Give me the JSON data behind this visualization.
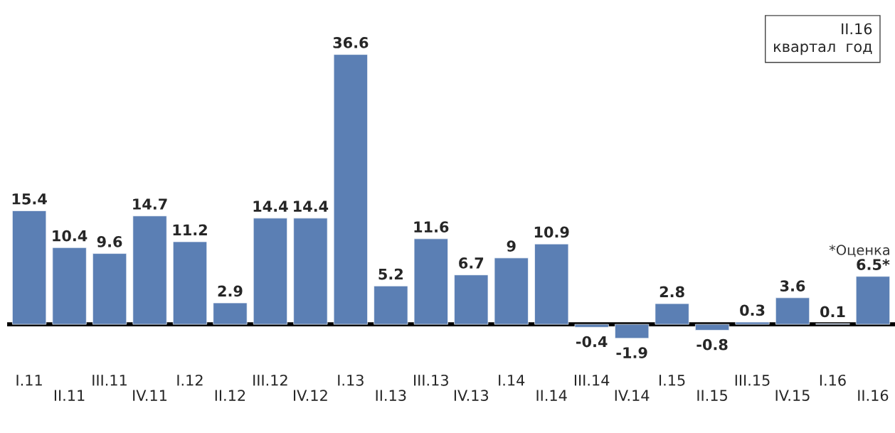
{
  "chart_data": {
    "type": "bar",
    "categories": [
      "I.11",
      "II.11",
      "III.11",
      "IV.11",
      "I.12",
      "II.12",
      "III.12",
      "IV.12",
      "I.13",
      "II.13",
      "III.13",
      "IV.13",
      "I.14",
      "II.14",
      "III.14",
      "IV.14",
      "I.15",
      "II.15",
      "III.15",
      "IV.15",
      "I.16",
      "II.16"
    ],
    "values": [
      15.4,
      10.4,
      9.6,
      14.7,
      11.2,
      2.9,
      14.4,
      14.4,
      36.6,
      5.2,
      11.6,
      6.7,
      9,
      10.9,
      -0.4,
      -1.9,
      2.8,
      -0.8,
      0.3,
      3.6,
      0.1,
      6.5
    ],
    "value_labels": [
      "15.4",
      "10.4",
      "9.6",
      "14.7",
      "11.2",
      "2.9",
      "14.4",
      "14.4",
      "36.6",
      "5.2",
      "11.6",
      "6.7",
      "9",
      "10.9",
      "-0.4",
      "-1.9",
      "2.8",
      "-0.8",
      "0.3",
      "3.6",
      "0.1",
      "6.5*"
    ],
    "color": "#5b7fb4",
    "annotations": [
      "II.16\nквартал  год",
      "*Оценка"
    ]
  }
}
